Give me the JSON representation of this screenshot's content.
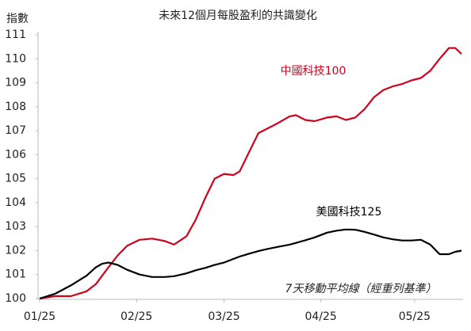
{
  "chart_data": {
    "type": "line",
    "title": "未來12個月每股盈利的共識變化",
    "y_label": "指數",
    "annotation": "7天移動平均線（經重列基準）",
    "x": [
      0,
      5,
      10,
      15,
      18,
      20,
      22,
      25,
      28,
      32,
      36,
      40,
      43,
      47,
      50,
      53,
      56,
      59,
      62,
      64,
      67,
      70,
      73,
      76,
      80,
      82,
      85,
      88,
      92,
      95,
      98,
      101,
      104,
      107,
      110,
      113,
      116,
      119,
      122,
      125,
      128,
      131,
      133,
      135
    ],
    "xlim": [
      0,
      135
    ],
    "xticks": [
      {
        "value": 0,
        "label": "01/25"
      },
      {
        "value": 31,
        "label": "02/25"
      },
      {
        "value": 59,
        "label": "03/25"
      },
      {
        "value": 90,
        "label": "04/25"
      },
      {
        "value": 120,
        "label": "05/25"
      }
    ],
    "ylim": [
      100,
      111
    ],
    "yticks": [
      100,
      101,
      102,
      103,
      104,
      105,
      106,
      107,
      108,
      109,
      110,
      111
    ],
    "grid": false,
    "series": [
      {
        "name": "中國科技100",
        "color": "#d0021b",
        "values": [
          100,
          100.1,
          100.1,
          100.3,
          100.6,
          100.95,
          101.3,
          101.8,
          102.2,
          102.45,
          102.5,
          102.4,
          102.25,
          102.6,
          103.3,
          104.2,
          105.0,
          105.2,
          105.15,
          105.3,
          106.1,
          106.9,
          107.1,
          107.3,
          107.6,
          107.65,
          107.45,
          107.4,
          107.55,
          107.6,
          107.45,
          107.55,
          107.9,
          108.4,
          108.7,
          108.85,
          108.95,
          109.1,
          109.2,
          109.5,
          110.0,
          110.45,
          110.45,
          110.2
        ]
      },
      {
        "name": "美國科技125",
        "color": "#000000",
        "values": [
          100,
          100.2,
          100.55,
          100.95,
          101.3,
          101.45,
          101.5,
          101.4,
          101.2,
          101.0,
          100.9,
          100.9,
          100.93,
          101.05,
          101.18,
          101.28,
          101.4,
          101.5,
          101.65,
          101.75,
          101.87,
          101.98,
          102.07,
          102.15,
          102.25,
          102.32,
          102.43,
          102.55,
          102.75,
          102.83,
          102.88,
          102.87,
          102.78,
          102.67,
          102.55,
          102.47,
          102.42,
          102.42,
          102.45,
          102.25,
          101.85,
          101.85,
          101.95,
          102.0
        ]
      }
    ]
  }
}
